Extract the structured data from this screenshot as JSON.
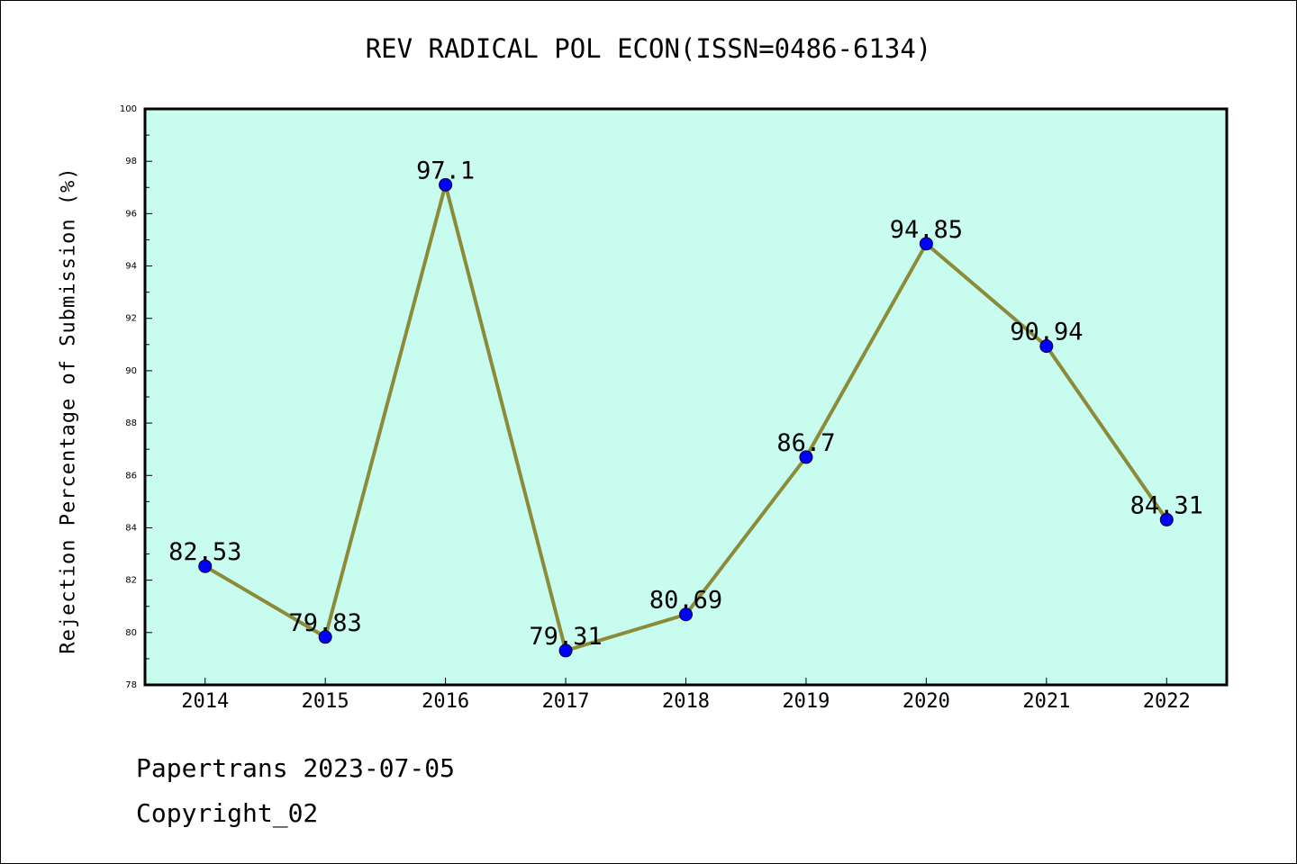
{
  "title": "REV RADICAL POL ECON(ISSN=0486-6134)",
  "footer": {
    "line1": "Papertrans 2023-07-05",
    "line2": "Copyright_02"
  },
  "colors": {
    "plot_background": "#c8fcee",
    "line": "#8b8b3a",
    "marker": "#0000ff"
  },
  "chart_data": {
    "type": "line",
    "title": "REV RADICAL POL ECON(ISSN=0486-6134)",
    "xlabel": "",
    "ylabel": "Rejection Percentage of Submission (%)",
    "categories": [
      "2014",
      "2015",
      "2016",
      "2017",
      "2018",
      "2019",
      "2020",
      "2021",
      "2022"
    ],
    "series": [
      {
        "values": [
          82.53,
          79.83,
          97.1,
          79.31,
          80.69,
          86.7,
          94.85,
          90.94,
          84.31
        ],
        "labels": [
          "82.53",
          "79.83",
          "97.1",
          "79.31",
          "80.69",
          "86.7",
          "94.85",
          "90.94",
          "84.31"
        ]
      }
    ],
    "ylim": [
      78,
      100
    ],
    "yticks": [
      78,
      80,
      82,
      84,
      86,
      88,
      90,
      92,
      94,
      96,
      98,
      100
    ],
    "grid": false,
    "legend": "none"
  }
}
